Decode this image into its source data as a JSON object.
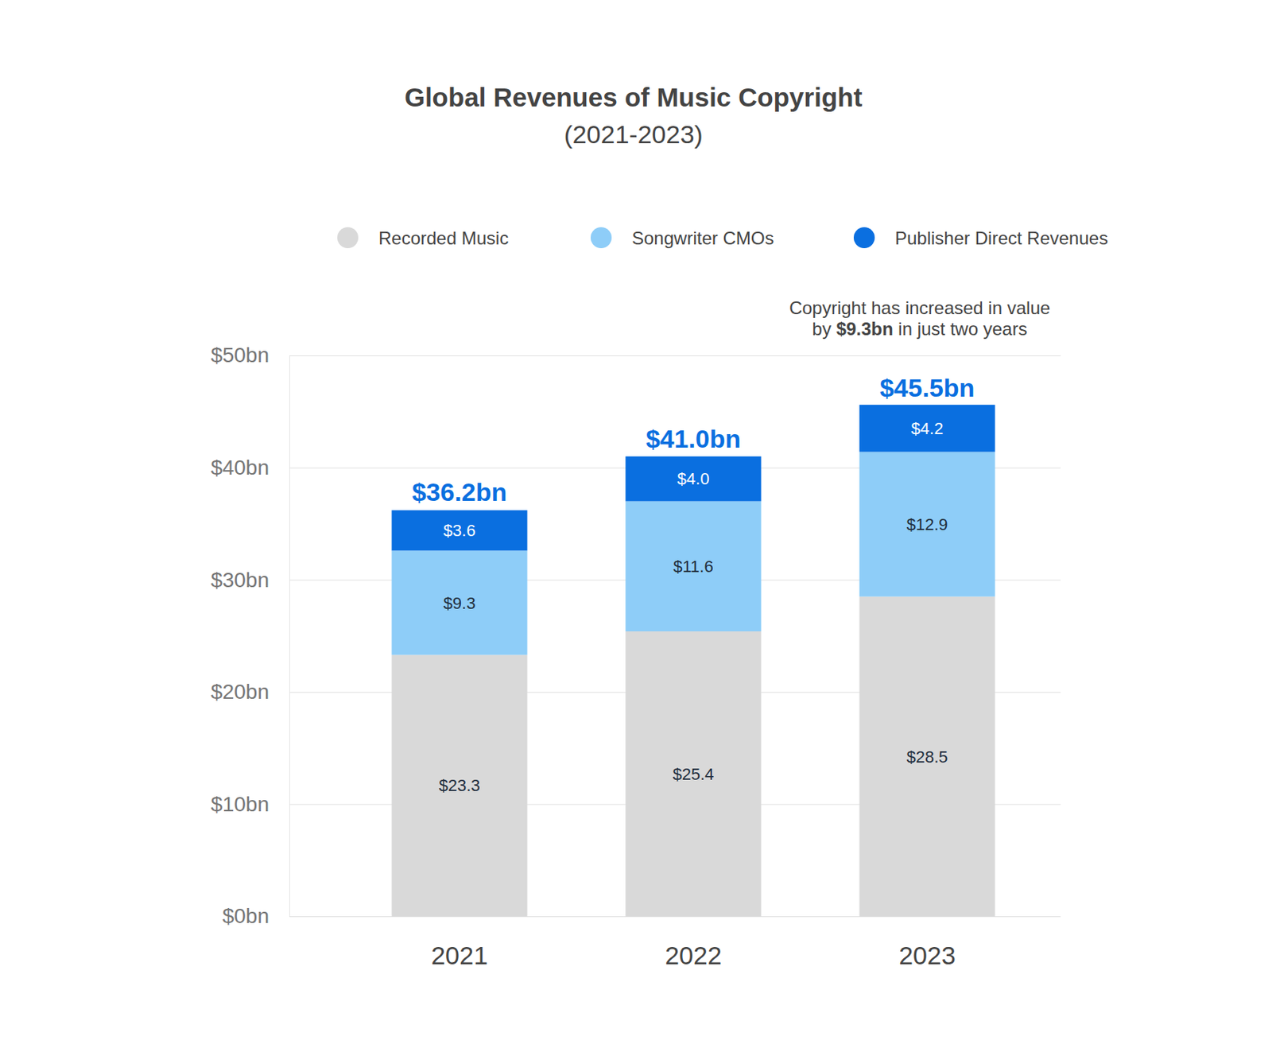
{
  "chart_data": {
    "type": "bar",
    "stacked": true,
    "data_labels": true,
    "grid": true,
    "legend": "top",
    "title": "Global Revenues of Music Copyright",
    "subtitle": "(2021-2023)",
    "categories": [
      "2021",
      "2022",
      "2023"
    ],
    "series": [
      {
        "name": "Recorded Music",
        "color": "#d9d9d9",
        "values": [
          23.3,
          25.4,
          28.5
        ],
        "value_labels": [
          "$23.3",
          "$25.4",
          "$28.5"
        ]
      },
      {
        "name": "Songwriter CMOs",
        "color": "#8ecdf8",
        "values": [
          9.3,
          11.6,
          12.9
        ],
        "value_labels": [
          "$9.3",
          "$11.6",
          "$12.9"
        ]
      },
      {
        "name": "Publisher Direct Revenues",
        "color": "#0a6fe0",
        "values": [
          3.6,
          4.0,
          4.2
        ],
        "value_labels": [
          "$3.6",
          "$4.0",
          "$4.2"
        ]
      }
    ],
    "totals": [
      36.2,
      41.0,
      45.5
    ],
    "total_labels": [
      "$36.2bn",
      "$41.0bn",
      "$45.5bn"
    ],
    "annotation": [
      "Copyright has increased in value",
      [
        "by ",
        "$9.3bn",
        " in just two years"
      ]
    ],
    "ylim": [
      0,
      50
    ],
    "yticks": [
      {
        "value": 0,
        "label": "$0bn"
      },
      {
        "value": 10,
        "label": "$10bn"
      },
      {
        "value": 20,
        "label": "$20bn"
      },
      {
        "value": 30,
        "label": "$30bn"
      },
      {
        "value": 40,
        "label": "$40bn"
      },
      {
        "value": 50,
        "label": "$50bn"
      }
    ]
  }
}
